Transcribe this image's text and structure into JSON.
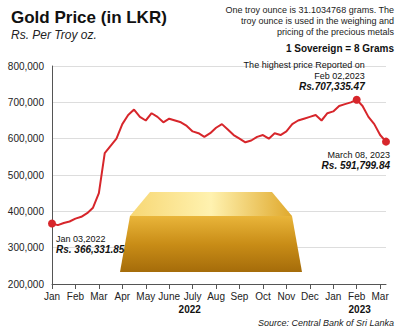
{
  "chart_data": {
    "type": "line",
    "title": "Gold Price (in LKR)",
    "subtitle": "Rs. Per Troy oz.",
    "note_lines": [
      "One troy ounce is 31.1034768 grams. The",
      "troy ounce is used in the weighing and",
      "pricing of the precious metals"
    ],
    "conversion_note": "1 Sovereign = 8 Grams",
    "source": "Source: Central Bank of Sri Lanka",
    "categories": [
      "Jan",
      null,
      null,
      null,
      "Feb",
      null,
      null,
      null,
      "Mar",
      null,
      null,
      null,
      "Apr",
      null,
      null,
      null,
      "May",
      null,
      null,
      null,
      "June",
      null,
      null,
      null,
      "July",
      null,
      null,
      null,
      "Aug",
      null,
      null,
      null,
      "Sep",
      null,
      null,
      null,
      "Oct",
      null,
      null,
      null,
      "Nov",
      null,
      null,
      null,
      "Dec",
      null,
      null,
      null,
      "Jan",
      null,
      null,
      null,
      "Feb",
      null,
      null,
      null,
      "Mar",
      null
    ],
    "x_groups": [
      "2022",
      "2023"
    ],
    "values": [
      366331.85,
      362000,
      368000,
      372000,
      380000,
      385000,
      395000,
      410000,
      450000,
      560000,
      580000,
      600000,
      640000,
      665000,
      680000,
      660000,
      650000,
      670000,
      660000,
      645000,
      655000,
      650000,
      645000,
      635000,
      620000,
      615000,
      605000,
      615000,
      630000,
      640000,
      625000,
      610000,
      600000,
      590000,
      595000,
      605000,
      610000,
      600000,
      615000,
      610000,
      620000,
      640000,
      650000,
      655000,
      660000,
      665000,
      650000,
      670000,
      675000,
      690000,
      695000,
      700000,
      707335.47,
      690000,
      660000,
      640000,
      610000,
      591799.84
    ],
    "color": "#d7262b",
    "marker": "circle",
    "ylim": [
      200000,
      800000
    ],
    "yticks": [
      {
        "value": 200000,
        "label": "200,000"
      },
      {
        "value": 300000,
        "label": "300,000"
      },
      {
        "value": 400000,
        "label": "400,000"
      },
      {
        "value": 500000,
        "label": "500,000"
      },
      {
        "value": 600000,
        "label": "600,000"
      },
      {
        "value": 700000,
        "label": "700,000"
      },
      {
        "value": 800000,
        "label": "800,000"
      }
    ],
    "grid": true,
    "annotations": [
      {
        "value": 366331.85,
        "text_lines": [
          "Jan 03,2022"
        ],
        "value_label": "Rs. 366,331.85"
      },
      {
        "value": 707335.47,
        "text_lines": [
          "The highest price Reported on",
          "Feb 02,2023"
        ],
        "value_label": "Rs.707,335.47"
      },
      {
        "value": 591799.84,
        "text_lines": [
          "March 08, 2023"
        ],
        "value_label": "Rs. 591,799.84"
      }
    ]
  }
}
